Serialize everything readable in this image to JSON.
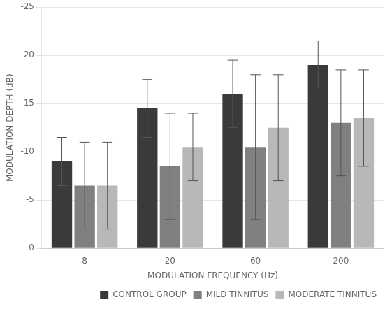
{
  "chart_data": {
    "type": "bar",
    "categories": [
      "8",
      "20",
      "60",
      "200"
    ],
    "xlabel": "MODULATION FREQUENCY (Hz)",
    "ylabel": "MODULATION DEPTH (dB)",
    "ylim": [
      0,
      -25
    ],
    "yticks": [
      0,
      -5,
      -10,
      -15,
      -20,
      -25
    ],
    "grid": true,
    "legend": "lower right",
    "series": [
      {
        "name": "CONTROL GROUP",
        "color": "#3a3a3a",
        "values": [
          -9.0,
          -14.5,
          -16.0,
          -19.0
        ],
        "errors": [
          2.5,
          3.0,
          3.5,
          2.5
        ]
      },
      {
        "name": "MILD TINNITUS",
        "color": "#808080",
        "values": [
          -6.5,
          -8.5,
          -10.5,
          -13.0
        ],
        "errors": [
          4.5,
          5.5,
          7.5,
          5.5
        ]
      },
      {
        "name": "MODERATE TINNITUS",
        "color": "#b8b8b8",
        "values": [
          -6.5,
          -10.5,
          -12.5,
          -13.5
        ],
        "errors": [
          4.5,
          3.5,
          5.5,
          5.0
        ]
      }
    ]
  }
}
